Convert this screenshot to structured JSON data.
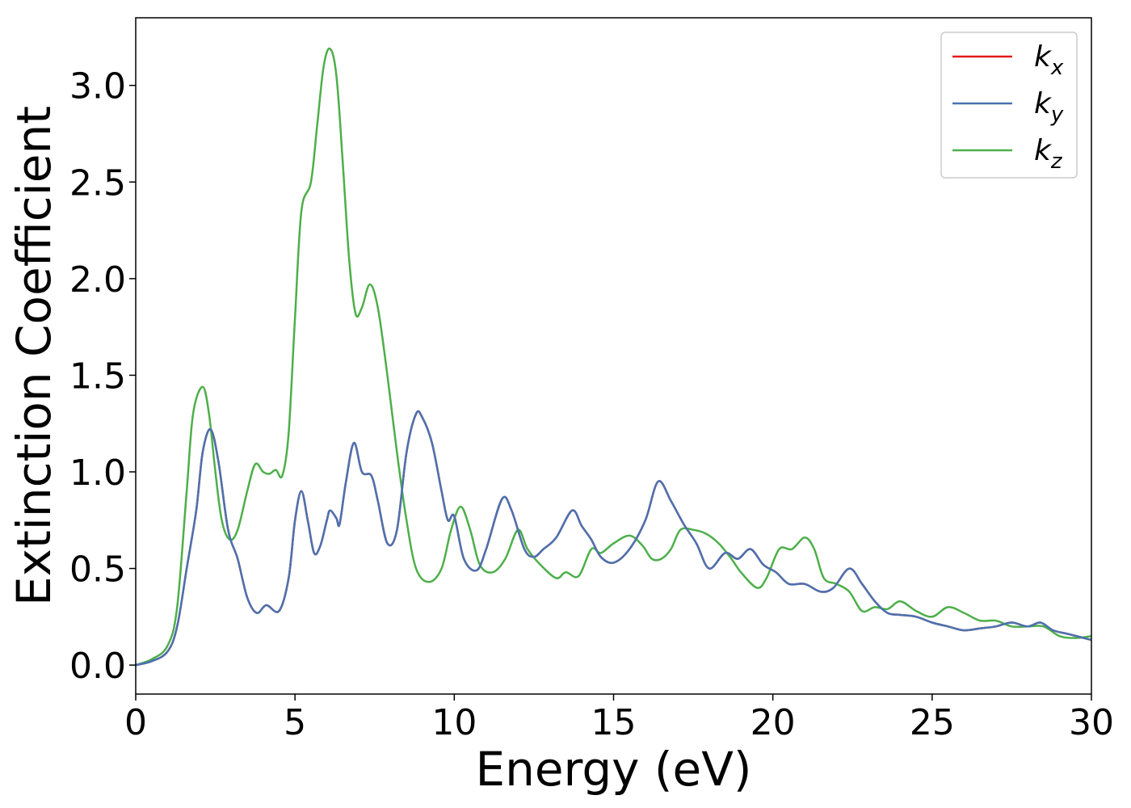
{
  "chart_data": {
    "type": "line",
    "title": "",
    "xlabel": "Energy (eV)",
    "ylabel": "Extinction Coefficient",
    "xlim": [
      0,
      30
    ],
    "ylim": [
      -0.15,
      3.35
    ],
    "xticks": [
      0,
      5,
      10,
      15,
      20,
      25,
      30
    ],
    "yticks": [
      0.0,
      0.5,
      1.0,
      1.5,
      2.0,
      2.5,
      3.0
    ],
    "xtick_labels": [
      "0",
      "5",
      "10",
      "15",
      "20",
      "25",
      "30"
    ],
    "ytick_labels": [
      "0.0",
      "0.5",
      "1.0",
      "1.5",
      "2.0",
      "2.5",
      "3.0"
    ],
    "grid": false,
    "legend_position": "top-right",
    "series": [
      {
        "name": "k_x",
        "label_main": "k",
        "label_sub": "x",
        "color": "#e41a1c",
        "points": [
          [
            0,
            0.0
          ],
          [
            0.5,
            0.02
          ],
          [
            1.0,
            0.07
          ],
          [
            1.3,
            0.2
          ],
          [
            1.6,
            0.5
          ],
          [
            1.9,
            0.8
          ],
          [
            2.1,
            1.1
          ],
          [
            2.35,
            1.22
          ],
          [
            2.6,
            1.05
          ],
          [
            2.9,
            0.7
          ],
          [
            3.2,
            0.55
          ],
          [
            3.5,
            0.35
          ],
          [
            3.8,
            0.27
          ],
          [
            4.1,
            0.31
          ],
          [
            4.5,
            0.28
          ],
          [
            4.8,
            0.45
          ],
          [
            5.0,
            0.75
          ],
          [
            5.2,
            0.9
          ],
          [
            5.4,
            0.75
          ],
          [
            5.6,
            0.58
          ],
          [
            5.8,
            0.62
          ],
          [
            6.0,
            0.75
          ],
          [
            6.1,
            0.8
          ],
          [
            6.3,
            0.76
          ],
          [
            6.4,
            0.73
          ],
          [
            6.6,
            0.95
          ],
          [
            6.85,
            1.15
          ],
          [
            7.1,
            1.0
          ],
          [
            7.4,
            0.98
          ],
          [
            7.6,
            0.85
          ],
          [
            7.9,
            0.63
          ],
          [
            8.2,
            0.7
          ],
          [
            8.5,
            1.1
          ],
          [
            8.8,
            1.3
          ],
          [
            9.0,
            1.28
          ],
          [
            9.3,
            1.15
          ],
          [
            9.6,
            0.9
          ],
          [
            9.8,
            0.75
          ],
          [
            10.0,
            0.77
          ],
          [
            10.3,
            0.55
          ],
          [
            10.7,
            0.49
          ],
          [
            11.0,
            0.6
          ],
          [
            11.5,
            0.86
          ],
          [
            11.8,
            0.8
          ],
          [
            12.2,
            0.6
          ],
          [
            12.5,
            0.56
          ],
          [
            12.8,
            0.6
          ],
          [
            13.2,
            0.66
          ],
          [
            13.7,
            0.8
          ],
          [
            14.0,
            0.72
          ],
          [
            14.3,
            0.65
          ],
          [
            14.6,
            0.56
          ],
          [
            15.0,
            0.53
          ],
          [
            15.5,
            0.6
          ],
          [
            16.0,
            0.75
          ],
          [
            16.4,
            0.95
          ],
          [
            16.8,
            0.85
          ],
          [
            17.2,
            0.73
          ],
          [
            17.6,
            0.63
          ],
          [
            18.0,
            0.5
          ],
          [
            18.5,
            0.58
          ],
          [
            18.9,
            0.55
          ],
          [
            19.3,
            0.6
          ],
          [
            19.7,
            0.52
          ],
          [
            20.1,
            0.48
          ],
          [
            20.5,
            0.42
          ],
          [
            21.0,
            0.42
          ],
          [
            21.5,
            0.38
          ],
          [
            21.9,
            0.4
          ],
          [
            22.4,
            0.5
          ],
          [
            22.8,
            0.42
          ],
          [
            23.2,
            0.33
          ],
          [
            23.6,
            0.27
          ],
          [
            24.0,
            0.26
          ],
          [
            24.5,
            0.25
          ],
          [
            25.0,
            0.22
          ],
          [
            25.5,
            0.2
          ],
          [
            26.0,
            0.18
          ],
          [
            26.5,
            0.19
          ],
          [
            27.0,
            0.2
          ],
          [
            27.5,
            0.22
          ],
          [
            28.0,
            0.2
          ],
          [
            28.4,
            0.22
          ],
          [
            28.8,
            0.18
          ],
          [
            29.3,
            0.16
          ],
          [
            30.0,
            0.13
          ]
        ]
      },
      {
        "name": "k_y",
        "label_main": "k",
        "label_sub": "y",
        "color": "#4a72b0",
        "points": [
          [
            0,
            0.0
          ],
          [
            0.5,
            0.02
          ],
          [
            1.0,
            0.07
          ],
          [
            1.3,
            0.2
          ],
          [
            1.6,
            0.5
          ],
          [
            1.9,
            0.8
          ],
          [
            2.1,
            1.1
          ],
          [
            2.35,
            1.22
          ],
          [
            2.6,
            1.05
          ],
          [
            2.9,
            0.7
          ],
          [
            3.2,
            0.55
          ],
          [
            3.5,
            0.35
          ],
          [
            3.8,
            0.27
          ],
          [
            4.1,
            0.31
          ],
          [
            4.5,
            0.28
          ],
          [
            4.8,
            0.45
          ],
          [
            5.0,
            0.75
          ],
          [
            5.2,
            0.9
          ],
          [
            5.4,
            0.75
          ],
          [
            5.6,
            0.58
          ],
          [
            5.8,
            0.62
          ],
          [
            6.0,
            0.75
          ],
          [
            6.1,
            0.8
          ],
          [
            6.3,
            0.76
          ],
          [
            6.4,
            0.73
          ],
          [
            6.6,
            0.95
          ],
          [
            6.85,
            1.15
          ],
          [
            7.1,
            1.0
          ],
          [
            7.4,
            0.98
          ],
          [
            7.6,
            0.85
          ],
          [
            7.9,
            0.63
          ],
          [
            8.2,
            0.7
          ],
          [
            8.5,
            1.1
          ],
          [
            8.8,
            1.3
          ],
          [
            9.0,
            1.28
          ],
          [
            9.3,
            1.15
          ],
          [
            9.6,
            0.9
          ],
          [
            9.8,
            0.75
          ],
          [
            10.0,
            0.77
          ],
          [
            10.3,
            0.55
          ],
          [
            10.7,
            0.49
          ],
          [
            11.0,
            0.6
          ],
          [
            11.5,
            0.86
          ],
          [
            11.8,
            0.8
          ],
          [
            12.2,
            0.6
          ],
          [
            12.5,
            0.56
          ],
          [
            12.8,
            0.6
          ],
          [
            13.2,
            0.66
          ],
          [
            13.7,
            0.8
          ],
          [
            14.0,
            0.72
          ],
          [
            14.3,
            0.65
          ],
          [
            14.6,
            0.56
          ],
          [
            15.0,
            0.53
          ],
          [
            15.5,
            0.6
          ],
          [
            16.0,
            0.75
          ],
          [
            16.4,
            0.95
          ],
          [
            16.8,
            0.85
          ],
          [
            17.2,
            0.73
          ],
          [
            17.6,
            0.63
          ],
          [
            18.0,
            0.5
          ],
          [
            18.5,
            0.58
          ],
          [
            18.9,
            0.55
          ],
          [
            19.3,
            0.6
          ],
          [
            19.7,
            0.52
          ],
          [
            20.1,
            0.48
          ],
          [
            20.5,
            0.42
          ],
          [
            21.0,
            0.42
          ],
          [
            21.5,
            0.38
          ],
          [
            21.9,
            0.4
          ],
          [
            22.4,
            0.5
          ],
          [
            22.8,
            0.42
          ],
          [
            23.2,
            0.33
          ],
          [
            23.6,
            0.27
          ],
          [
            24.0,
            0.26
          ],
          [
            24.5,
            0.25
          ],
          [
            25.0,
            0.22
          ],
          [
            25.5,
            0.2
          ],
          [
            26.0,
            0.18
          ],
          [
            26.5,
            0.19
          ],
          [
            27.0,
            0.2
          ],
          [
            27.5,
            0.22
          ],
          [
            28.0,
            0.2
          ],
          [
            28.4,
            0.22
          ],
          [
            28.8,
            0.18
          ],
          [
            29.3,
            0.16
          ],
          [
            30.0,
            0.13
          ]
        ]
      },
      {
        "name": "k_z",
        "label_main": "k",
        "label_sub": "z",
        "color": "#4daf4a",
        "points": [
          [
            0,
            0.0
          ],
          [
            0.5,
            0.03
          ],
          [
            1.0,
            0.1
          ],
          [
            1.3,
            0.3
          ],
          [
            1.6,
            0.9
          ],
          [
            1.8,
            1.3
          ],
          [
            2.1,
            1.44
          ],
          [
            2.3,
            1.3
          ],
          [
            2.5,
            1.0
          ],
          [
            2.7,
            0.75
          ],
          [
            2.95,
            0.65
          ],
          [
            3.2,
            0.7
          ],
          [
            3.5,
            0.9
          ],
          [
            3.75,
            1.04
          ],
          [
            4.0,
            1.0
          ],
          [
            4.2,
            0.99
          ],
          [
            4.4,
            1.01
          ],
          [
            4.6,
            0.98
          ],
          [
            4.8,
            1.2
          ],
          [
            5.0,
            1.8
          ],
          [
            5.2,
            2.35
          ],
          [
            5.5,
            2.5
          ],
          [
            5.7,
            2.8
          ],
          [
            5.9,
            3.1
          ],
          [
            6.1,
            3.19
          ],
          [
            6.3,
            3.05
          ],
          [
            6.5,
            2.6
          ],
          [
            6.7,
            2.1
          ],
          [
            6.9,
            1.82
          ],
          [
            7.1,
            1.85
          ],
          [
            7.35,
            1.97
          ],
          [
            7.6,
            1.85
          ],
          [
            7.9,
            1.5
          ],
          [
            8.2,
            1.1
          ],
          [
            8.5,
            0.75
          ],
          [
            8.8,
            0.5
          ],
          [
            9.2,
            0.43
          ],
          [
            9.6,
            0.5
          ],
          [
            9.9,
            0.7
          ],
          [
            10.2,
            0.82
          ],
          [
            10.5,
            0.7
          ],
          [
            10.8,
            0.52
          ],
          [
            11.2,
            0.48
          ],
          [
            11.6,
            0.55
          ],
          [
            12.0,
            0.7
          ],
          [
            12.3,
            0.6
          ],
          [
            12.7,
            0.52
          ],
          [
            13.2,
            0.45
          ],
          [
            13.5,
            0.48
          ],
          [
            13.9,
            0.46
          ],
          [
            14.3,
            0.6
          ],
          [
            14.6,
            0.58
          ],
          [
            15.0,
            0.63
          ],
          [
            15.5,
            0.67
          ],
          [
            15.9,
            0.62
          ],
          [
            16.2,
            0.55
          ],
          [
            16.5,
            0.55
          ],
          [
            16.8,
            0.6
          ],
          [
            17.1,
            0.7
          ],
          [
            17.5,
            0.7
          ],
          [
            17.9,
            0.68
          ],
          [
            18.3,
            0.63
          ],
          [
            18.7,
            0.55
          ],
          [
            19.0,
            0.48
          ],
          [
            19.5,
            0.4
          ],
          [
            19.8,
            0.45
          ],
          [
            20.2,
            0.6
          ],
          [
            20.6,
            0.6
          ],
          [
            21.0,
            0.66
          ],
          [
            21.3,
            0.6
          ],
          [
            21.6,
            0.45
          ],
          [
            22.0,
            0.42
          ],
          [
            22.4,
            0.38
          ],
          [
            22.8,
            0.28
          ],
          [
            23.2,
            0.3
          ],
          [
            23.6,
            0.29
          ],
          [
            24.0,
            0.33
          ],
          [
            24.5,
            0.28
          ],
          [
            25.0,
            0.25
          ],
          [
            25.5,
            0.3
          ],
          [
            26.0,
            0.27
          ],
          [
            26.5,
            0.23
          ],
          [
            27.0,
            0.23
          ],
          [
            27.5,
            0.2
          ],
          [
            28.0,
            0.2
          ],
          [
            28.5,
            0.2
          ],
          [
            29.0,
            0.15
          ],
          [
            29.5,
            0.14
          ],
          [
            30.0,
            0.15
          ]
        ]
      }
    ]
  }
}
